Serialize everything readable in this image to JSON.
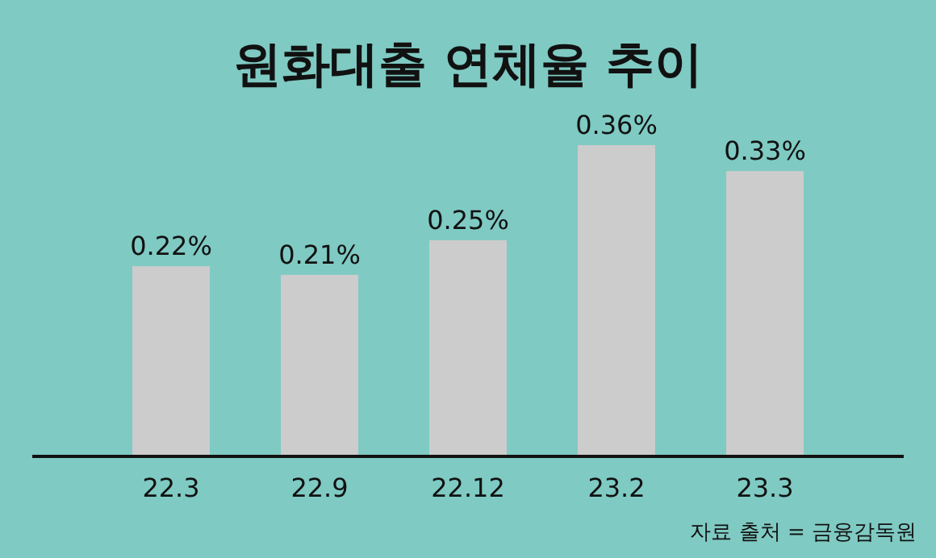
{
  "chart_data": {
    "type": "bar",
    "title": "원화대출 연체율 추이",
    "categories": [
      "22.3",
      "22.9",
      "22.12",
      "23.2",
      "23.3"
    ],
    "values": [
      0.22,
      0.21,
      0.25,
      0.36,
      0.33
    ],
    "value_labels": [
      "0.22%",
      "0.21%",
      "0.25%",
      "0.36%",
      "0.33%"
    ],
    "color": "#cccccc",
    "tick_labels": "x",
    "annotations": [
      "자료 출처 = 금융감독원"
    ]
  }
}
